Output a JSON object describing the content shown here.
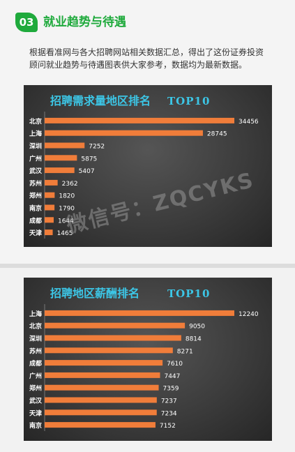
{
  "section": {
    "number": "03",
    "title": "就业趋势与待遇"
  },
  "intro": "根据看准网与各大招聘网站相关数据汇总，得出了这份证券投资顾问就业趋势与待遇图表供大家参考，数据均为最新数据。",
  "watermark": "微信号：ZQCYKS",
  "colors": {
    "accent_green": "#1faa3c",
    "bar_orange": "#f07d3a",
    "title_cyan": "#3cc6e6"
  },
  "chart_data": [
    {
      "type": "bar",
      "orientation": "horizontal",
      "title": "招聘需求量地区排名",
      "title_suffix": "TOP10",
      "categories": [
        "北京",
        "上海",
        "深圳",
        "广州",
        "武汉",
        "苏州",
        "郑州",
        "南京",
        "成都",
        "天津"
      ],
      "values": [
        34456,
        28745,
        7252,
        5875,
        5407,
        2362,
        1820,
        1790,
        1644,
        1465
      ],
      "xlim": [
        0,
        38000
      ],
      "grid": false,
      "legend": "none"
    },
    {
      "type": "bar",
      "orientation": "horizontal",
      "title": "招聘地区薪酬排名",
      "title_suffix": "TOP10",
      "categories": [
        "上海",
        "北京",
        "深圳",
        "苏州",
        "成都",
        "广州",
        "郑州",
        "武汉",
        "天津",
        "南京"
      ],
      "values": [
        12240,
        9050,
        8814,
        8271,
        7610,
        7447,
        7359,
        7237,
        7234,
        7152
      ],
      "xlim": [
        0,
        13500
      ],
      "grid": false,
      "legend": "none"
    }
  ]
}
